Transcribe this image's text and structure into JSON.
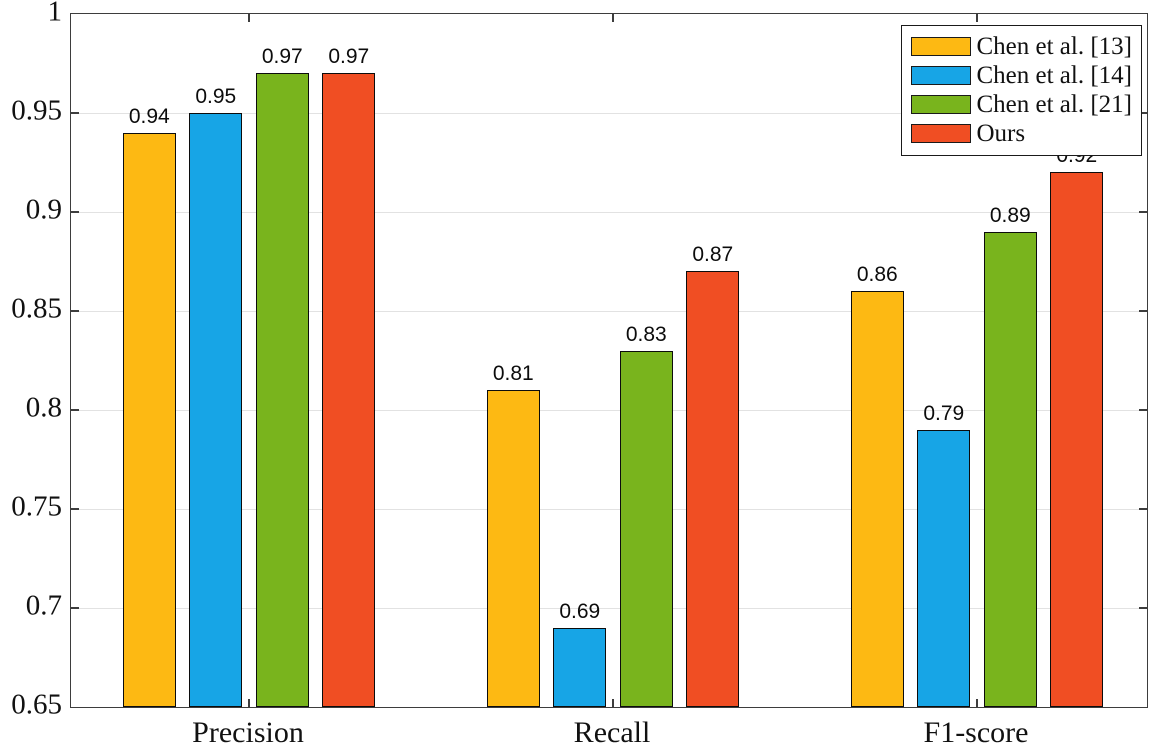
{
  "chart_data": {
    "type": "bar",
    "title": "",
    "xlabel": "",
    "ylabel": "",
    "categories": [
      "Precision",
      "Recall",
      "F1-score"
    ],
    "series": [
      {
        "name": "Chen et al. [13]",
        "color": "#FDB913",
        "values": [
          0.94,
          0.81,
          0.86
        ]
      },
      {
        "name": "Chen et al. [14]",
        "color": "#17A5E6",
        "values": [
          0.95,
          0.69,
          0.79
        ]
      },
      {
        "name": "Chen et al. [21]",
        "color": "#79B41D",
        "values": [
          0.97,
          0.83,
          0.89
        ]
      },
      {
        "name": "Ours",
        "color": "#F04E23",
        "values": [
          0.97,
          0.87,
          0.92
        ]
      }
    ],
    "bar_value_labels": [
      [
        "0.94",
        "0.81",
        "0.86"
      ],
      [
        "0.95",
        "0.69",
        "0.79"
      ],
      [
        "0.97",
        "0.83",
        "0.89"
      ],
      [
        "0.97",
        "0.87",
        "0.92"
      ]
    ],
    "ylim": [
      0.65,
      1.0
    ],
    "yticks": [
      {
        "value": 0.65,
        "label": "0.65"
      },
      {
        "value": 0.7,
        "label": "0.7"
      },
      {
        "value": 0.75,
        "label": "0.75"
      },
      {
        "value": 0.8,
        "label": "0.8"
      },
      {
        "value": 0.85,
        "label": "0.85"
      },
      {
        "value": 0.9,
        "label": "0.9"
      },
      {
        "value": 0.95,
        "label": "0.95"
      },
      {
        "value": 1.0,
        "label": "1"
      }
    ],
    "grid": "horizontal",
    "legend_position": "top-right",
    "colors": {
      "axis": "#3d3d3d",
      "gridline": "#e2e2e2",
      "bar_border": "#0c0c0c",
      "text": "#111111",
      "background": "#ffffff"
    }
  }
}
